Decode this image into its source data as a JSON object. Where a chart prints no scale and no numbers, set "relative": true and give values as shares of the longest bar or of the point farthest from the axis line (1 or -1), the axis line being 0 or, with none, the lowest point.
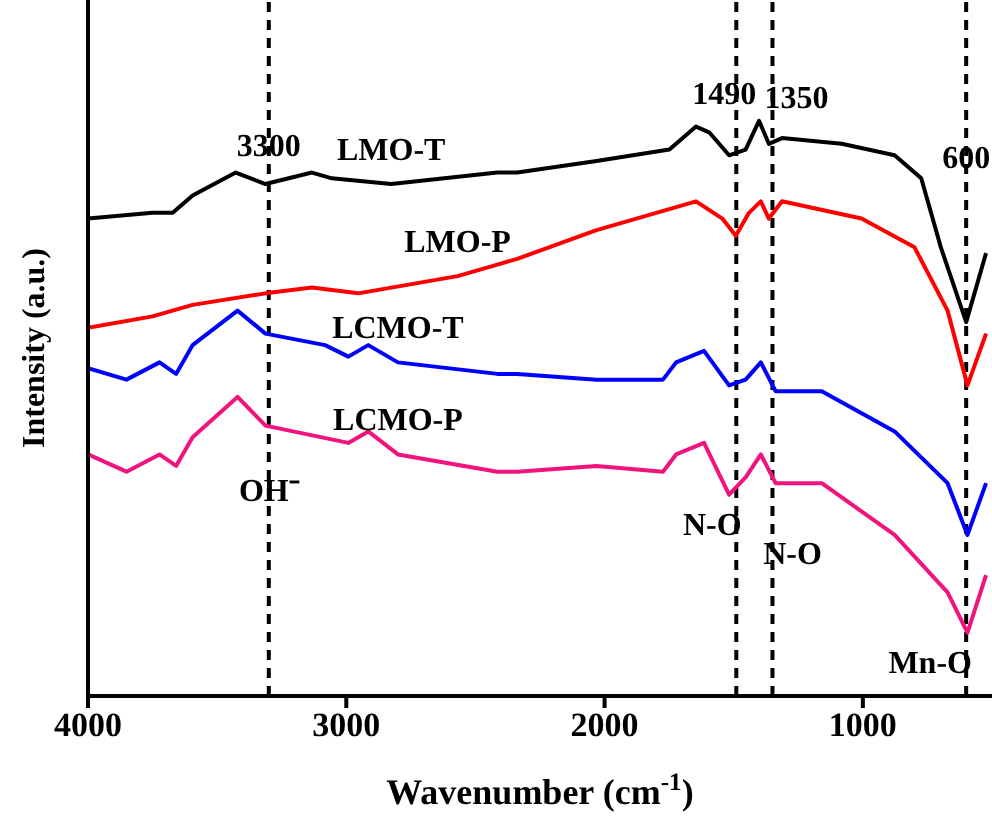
{
  "chart_data": {
    "type": "line",
    "relative": true,
    "xlabel": "Wavenumber (cm$^{-1}$)",
    "ylabel": "Intensity (a.u.)",
    "xlim": [
      4000,
      500
    ],
    "xticks": [
      4000,
      3000,
      2000,
      1000
    ],
    "grid": false,
    "legend": false,
    "marker": "none",
    "line_style": "solid",
    "series": [
      {
        "name": "LMO-T",
        "color": "#000000",
        "x": [
          4000,
          3750,
          3672,
          3595,
          3428,
          3313,
          3133,
          3056,
          2826,
          2415,
          2338,
          2031,
          1749,
          1646,
          1595,
          1518,
          1454,
          1402,
          1364,
          1313,
          1082,
          877,
          774,
          698,
          600,
          523
        ],
        "values": [
          0.83,
          0.84,
          0.84,
          0.87,
          0.91,
          0.89,
          0.91,
          0.9,
          0.89,
          0.91,
          0.91,
          0.93,
          0.95,
          0.99,
          0.98,
          0.94,
          0.95,
          1.0,
          0.96,
          0.97,
          0.96,
          0.94,
          0.9,
          0.78,
          0.65,
          0.77
        ]
      },
      {
        "name": "LMO-P",
        "color": "#ff0000",
        "x": [
          4000,
          3750,
          3595,
          3313,
          3133,
          2954,
          2569,
          2415,
          2338,
          2031,
          1646,
          1544,
          1492,
          1441,
          1395,
          1364,
          1313,
          1005,
          800,
          672,
          595,
          523
        ],
        "values": [
          0.64,
          0.66,
          0.68,
          0.7,
          0.71,
          0.7,
          0.73,
          0.75,
          0.76,
          0.81,
          0.86,
          0.83,
          0.8,
          0.84,
          0.86,
          0.83,
          0.86,
          0.83,
          0.78,
          0.67,
          0.54,
          0.63
        ]
      },
      {
        "name": "LCMO-T",
        "color": "#0000ff",
        "x": [
          4000,
          3851,
          3723,
          3659,
          3595,
          3421,
          3313,
          3082,
          2992,
          2915,
          2800,
          2415,
          2338,
          2031,
          1774,
          1723,
          1615,
          1518,
          1454,
          1395,
          1338,
          1159,
          877,
          672,
          595,
          523
        ],
        "values": [
          0.57,
          0.55,
          0.58,
          0.56,
          0.61,
          0.67,
          0.63,
          0.61,
          0.59,
          0.61,
          0.58,
          0.56,
          0.56,
          0.55,
          0.55,
          0.58,
          0.6,
          0.54,
          0.55,
          0.58,
          0.53,
          0.53,
          0.46,
          0.37,
          0.28,
          0.37
        ]
      },
      {
        "name": "LCMO-P",
        "color": "#f0147c",
        "x": [
          4000,
          3851,
          3723,
          3659,
          3595,
          3421,
          3313,
          2992,
          2915,
          2800,
          2415,
          2338,
          2031,
          1774,
          1723,
          1615,
          1518,
          1454,
          1395,
          1338,
          1159,
          877,
          672,
          595,
          523
        ],
        "values": [
          0.42,
          0.39,
          0.42,
          0.4,
          0.45,
          0.52,
          0.47,
          0.44,
          0.46,
          0.42,
          0.39,
          0.39,
          0.4,
          0.39,
          0.42,
          0.44,
          0.35,
          0.38,
          0.42,
          0.37,
          0.37,
          0.28,
          0.18,
          0.11,
          0.21
        ]
      }
    ],
    "ref_lines": [
      {
        "axis": "x",
        "value": 3300,
        "label": "3300",
        "line_style": "dashed",
        "color": "#000000"
      },
      {
        "axis": "x",
        "value": 1490,
        "label": "1490",
        "line_style": "dashed",
        "color": "#000000"
      },
      {
        "axis": "x",
        "value": 1350,
        "label": "1350",
        "line_style": "dashed",
        "color": "#000000"
      },
      {
        "axis": "x",
        "value": 600,
        "label": "600",
        "line_style": "dashed",
        "color": "#000000"
      }
    ],
    "annotations": [
      "OH⁻",
      "N-O",
      "N-O",
      "Mn-O"
    ]
  }
}
